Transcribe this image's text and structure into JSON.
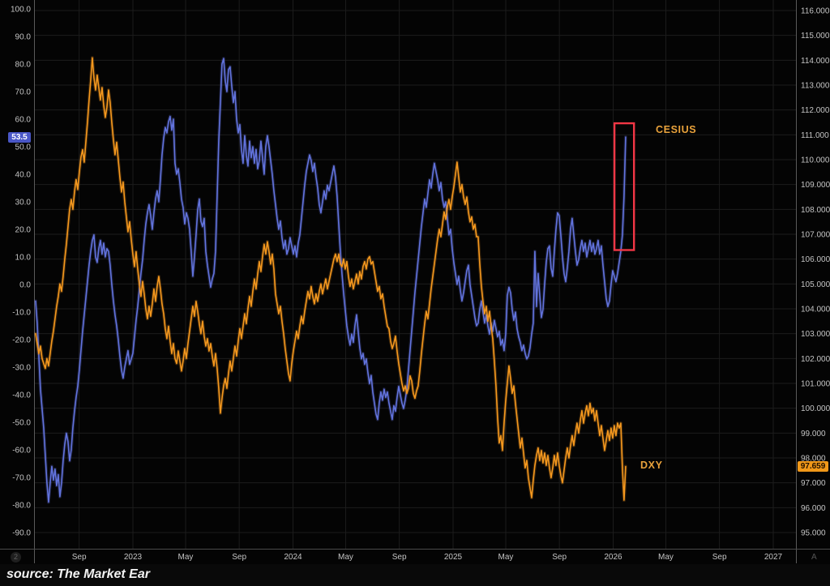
{
  "chart_data": {
    "type": "line",
    "title": "",
    "x_axis": {
      "ticks": [
        {
          "label": "Sep",
          "t": 2022.664
        },
        {
          "label": "2023",
          "t": 2023.0
        },
        {
          "label": "May",
          "t": 2023.329
        },
        {
          "label": "Sep",
          "t": 2023.664
        },
        {
          "label": "2024",
          "t": 2024.0
        },
        {
          "label": "May",
          "t": 2024.329
        },
        {
          "label": "Sep",
          "t": 2024.664
        },
        {
          "label": "2025",
          "t": 2025.0
        },
        {
          "label": "May",
          "t": 2025.329
        },
        {
          "label": "Sep",
          "t": 2025.664
        },
        {
          "label": "2026",
          "t": 2026.0
        },
        {
          "label": "May",
          "t": 2026.329
        },
        {
          "label": "Sep",
          "t": 2026.664
        },
        {
          "label": "2027",
          "t": 2027.0
        }
      ]
    },
    "y_axis_left": {
      "range": [
        -90,
        100
      ],
      "ticks": [
        {
          "label": "100.0",
          "value": 100
        },
        {
          "label": "90.0",
          "value": 90
        },
        {
          "label": "80.0",
          "value": 80
        },
        {
          "label": "70.0",
          "value": 70
        },
        {
          "label": "60.0",
          "value": 60
        },
        {
          "label": "50.0",
          "value": 50
        },
        {
          "label": "40.0",
          "value": 40
        },
        {
          "label": "30.0",
          "value": 30
        },
        {
          "label": "20.0",
          "value": 20
        },
        {
          "label": "10.0",
          "value": 10
        },
        {
          "label": "0.0",
          "value": 0
        },
        {
          "label": "-10.0",
          "value": -10
        },
        {
          "label": "-20.0",
          "value": -20
        },
        {
          "label": "-30.0",
          "value": -30
        },
        {
          "label": "-40.0",
          "value": -40
        },
        {
          "label": "-50.0",
          "value": -50
        },
        {
          "label": "-60.0",
          "value": -60
        },
        {
          "label": "-70.0",
          "value": -70
        },
        {
          "label": "-80.0",
          "value": -80
        },
        {
          "label": "-90.0",
          "value": -90
        }
      ]
    },
    "y_axis_right": {
      "range": [
        95,
        116
      ],
      "ticks": [
        {
          "label": "116.000",
          "value": 116
        },
        {
          "label": "115.000",
          "value": 115
        },
        {
          "label": "114.000",
          "value": 114
        },
        {
          "label": "113.000",
          "value": 113
        },
        {
          "label": "112.000",
          "value": 112
        },
        {
          "label": "111.000",
          "value": 111
        },
        {
          "label": "110.000",
          "value": 110
        },
        {
          "label": "109.000",
          "value": 109
        },
        {
          "label": "108.000",
          "value": 108
        },
        {
          "label": "107.000",
          "value": 107
        },
        {
          "label": "106.000",
          "value": 106
        },
        {
          "label": "105.000",
          "value": 105
        },
        {
          "label": "104.000",
          "value": 104
        },
        {
          "label": "103.000",
          "value": 103
        },
        {
          "label": "102.000",
          "value": 102
        },
        {
          "label": "101.000",
          "value": 101
        },
        {
          "label": "100.000",
          "value": 100
        },
        {
          "label": "99.000",
          "value": 99
        },
        {
          "label": "98.000",
          "value": 98
        },
        {
          "label": "97.000",
          "value": 97
        },
        {
          "label": "96.000",
          "value": 96
        },
        {
          "label": "95.000",
          "value": 95
        }
      ]
    },
    "series": [
      {
        "name": "CESIUS",
        "axis": "left",
        "color": "#6273dd",
        "last_value": 53.5,
        "t_start": 2022.392,
        "t_end": 2026.078,
        "values": [
          -6,
          -14,
          -26,
          -38,
          -45,
          -52,
          -62,
          -72,
          -79,
          -72,
          -66,
          -71,
          -67,
          -73,
          -69,
          -77,
          -72,
          -64,
          -58,
          -54,
          -57,
          -64,
          -60,
          -52,
          -46,
          -41,
          -37,
          -31,
          -24,
          -17,
          -11,
          -5,
          1,
          7,
          12,
          16,
          18,
          10,
          8,
          13,
          16,
          11,
          15,
          10,
          13,
          12,
          7,
          0,
          -6,
          -11,
          -15,
          -20,
          -26,
          -31,
          -34,
          -30,
          -27,
          -24,
          -29,
          -27,
          -25,
          -19,
          -13,
          -8,
          -2,
          4,
          9,
          16,
          22,
          26,
          29,
          25,
          20,
          26,
          31,
          34,
          30,
          38,
          47,
          53,
          57,
          55,
          59,
          61,
          56,
          60,
          44,
          40,
          42,
          37,
          31,
          28,
          22,
          26,
          24,
          20,
          12,
          3,
          10,
          18,
          27,
          31,
          23,
          21,
          24,
          12,
          7,
          3,
          -1,
          2,
          4,
          12,
          32,
          52,
          66,
          80,
          82,
          74,
          70,
          78,
          79,
          72,
          66,
          70,
          60,
          55,
          58,
          49,
          44,
          54,
          47,
          43,
          52,
          46,
          50,
          44,
          49,
          42,
          45,
          52,
          46,
          40,
          50,
          54,
          50,
          45,
          40,
          34,
          29,
          24,
          20,
          23,
          17,
          13,
          16,
          11,
          13,
          17,
          14,
          11,
          14,
          10,
          15,
          18,
          24,
          30,
          36,
          41,
          44,
          47,
          45,
          41,
          44,
          39,
          35,
          29,
          26,
          30,
          34,
          31,
          36,
          34,
          37,
          40,
          43,
          39,
          32,
          22,
          12,
          4,
          -3,
          -9,
          -15,
          -19,
          -22,
          -18,
          -21,
          -15,
          -11,
          -17,
          -23,
          -27,
          -25,
          -29,
          -27,
          -32,
          -36,
          -33,
          -39,
          -43,
          -47,
          -49,
          -43,
          -39,
          -42,
          -38,
          -41,
          -39,
          -43,
          -46,
          -49,
          -44,
          -46,
          -41,
          -37,
          -40,
          -43,
          -45,
          -42,
          -38,
          -31,
          -24,
          -17,
          -10,
          -3,
          3,
          9,
          15,
          21,
          26,
          31,
          28,
          33,
          38,
          35,
          40,
          44,
          41,
          38,
          34,
          37,
          31,
          28,
          30,
          24,
          18,
          20,
          13,
          8,
          4,
          0,
          3,
          -2,
          -6,
          -3,
          1,
          5,
          7,
          0,
          -4,
          -8,
          -12,
          -15,
          -14,
          -9,
          -6,
          -10,
          -14,
          -11,
          -15,
          -18,
          -14,
          -17,
          -13,
          -16,
          -19,
          -17,
          -22,
          -20,
          -24,
          -18,
          -4,
          -1,
          -3,
          -9,
          -13,
          -10,
          -16,
          -19,
          -21,
          -24,
          -22,
          -25,
          -27,
          -26,
          -23,
          -18,
          -14,
          12,
          -8,
          4,
          -4,
          -12,
          -9,
          0,
          8,
          13,
          14,
          6,
          3,
          12,
          20,
          26,
          25,
          18,
          10,
          4,
          1,
          6,
          12,
          20,
          24,
          18,
          12,
          7,
          9,
          13,
          16,
          12,
          15,
          10,
          13,
          16,
          12,
          15,
          11,
          13,
          16,
          11,
          14,
          7,
          1,
          -5,
          -8,
          -6,
          0,
          5,
          3,
          1,
          4,
          8,
          12,
          18,
          32,
          53.5
        ]
      },
      {
        "name": "DXY",
        "axis": "right",
        "color": "#f5981e",
        "last_value": 97.659,
        "t_start": 2022.392,
        "t_end": 2026.078,
        "values": [
          103.0,
          102.6,
          102.2,
          102.5,
          102.0,
          101.8,
          101.6,
          102.0,
          101.7,
          102.2,
          102.7,
          103.1,
          103.6,
          104.1,
          104.5,
          105.0,
          104.7,
          105.3,
          106.0,
          106.6,
          107.3,
          108.0,
          108.4,
          108.0,
          108.7,
          109.2,
          108.8,
          109.5,
          110.1,
          110.4,
          109.9,
          110.7,
          111.5,
          112.4,
          113.2,
          114.1,
          113.3,
          112.8,
          113.4,
          112.9,
          112.4,
          112.9,
          112.2,
          111.7,
          112.1,
          112.8,
          112.3,
          111.5,
          110.8,
          110.2,
          110.7,
          110.0,
          109.3,
          108.7,
          109.1,
          108.3,
          107.7,
          107.1,
          107.5,
          106.8,
          106.2,
          105.7,
          106.3,
          105.6,
          105.0,
          104.5,
          105.1,
          104.6,
          104.0,
          103.6,
          104.1,
          103.7,
          104.2,
          104.8,
          104.3,
          104.9,
          105.3,
          104.8,
          104.2,
          103.8,
          103.2,
          102.8,
          103.3,
          102.7,
          102.2,
          102.6,
          102.0,
          101.8,
          102.3,
          101.9,
          101.5,
          101.9,
          102.4,
          102.0,
          102.6,
          103.1,
          103.6,
          104.1,
          103.7,
          104.3,
          103.9,
          103.4,
          103.0,
          103.5,
          102.9,
          102.5,
          102.8,
          102.3,
          102.6,
          102.1,
          101.7,
          102.2,
          101.6,
          100.8,
          99.8,
          100.4,
          100.9,
          101.2,
          100.8,
          101.4,
          101.9,
          101.5,
          102.0,
          102.5,
          102.1,
          102.7,
          103.2,
          102.8,
          103.3,
          103.8,
          103.4,
          104.0,
          104.5,
          104.1,
          104.7,
          105.2,
          104.8,
          105.4,
          105.9,
          105.5,
          106.1,
          106.6,
          106.2,
          106.7,
          106.3,
          105.8,
          106.2,
          105.6,
          104.6,
          104.2,
          103.8,
          104.1,
          103.5,
          103.0,
          102.4,
          101.9,
          101.4,
          101.1,
          101.8,
          102.3,
          102.7,
          103.1,
          102.8,
          103.3,
          103.7,
          103.4,
          103.9,
          104.3,
          104.7,
          104.4,
          104.9,
          104.5,
          104.2,
          104.6,
          104.3,
          104.7,
          105.0,
          104.6,
          104.9,
          105.2,
          104.8,
          105.1,
          105.4,
          105.7,
          106.0,
          106.2,
          105.9,
          106.2,
          105.8,
          105.7,
          106.0,
          105.6,
          105.9,
          105.3,
          104.9,
          105.2,
          104.8,
          105.1,
          105.4,
          105.0,
          105.5,
          105.2,
          105.7,
          105.9,
          105.6,
          106.0,
          106.1,
          105.8,
          105.9,
          105.5,
          105.1,
          104.7,
          104.9,
          104.4,
          104.6,
          104.1,
          103.7,
          103.3,
          103.2,
          102.7,
          102.4,
          102.6,
          102.9,
          102.3,
          101.8,
          101.4,
          101.0,
          100.7,
          100.9,
          100.6,
          100.8,
          101.3,
          101.1,
          100.6,
          100.4,
          100.7,
          100.9,
          101.5,
          102.2,
          102.8,
          103.4,
          103.9,
          103.6,
          104.2,
          104.8,
          105.3,
          105.8,
          106.3,
          106.8,
          107.2,
          106.9,
          107.4,
          107.9,
          107.6,
          108.1,
          108.4,
          108.0,
          108.5,
          108.9,
          109.4,
          109.9,
          109.3,
          108.7,
          109.0,
          108.5,
          108.2,
          108.5,
          107.9,
          107.5,
          107.7,
          107.2,
          107.4,
          106.9,
          106.9,
          105.8,
          104.9,
          104.3,
          103.8,
          104.1,
          103.5,
          103.9,
          103.3,
          102.8,
          101.9,
          100.9,
          99.6,
          98.6,
          98.9,
          98.3,
          99.4,
          100.3,
          101.0,
          101.7,
          101.2,
          100.6,
          100.9,
          100.2,
          99.6,
          99.0,
          98.4,
          98.8,
          98.2,
          97.6,
          97.9,
          97.2,
          96.8,
          96.4,
          97.1,
          97.7,
          98.1,
          98.4,
          97.9,
          98.3,
          97.8,
          98.2,
          97.7,
          98.1,
          97.6,
          97.2,
          97.6,
          98.1,
          97.7,
          98.2,
          97.7,
          97.3,
          97.0,
          97.5,
          98.0,
          98.4,
          98.0,
          98.5,
          98.9,
          98.5,
          99.0,
          99.4,
          99.0,
          99.5,
          99.9,
          99.4,
          99.8,
          100.1,
          99.7,
          100.2,
          99.8,
          100.0,
          99.5,
          99.9,
          99.4,
          98.9,
          99.3,
          98.8,
          98.3,
          98.7,
          99.1,
          98.7,
          99.2,
          98.8,
          99.3,
          98.9,
          99.4,
          99.2,
          99.4,
          97.6,
          96.3,
          97.659
        ]
      }
    ],
    "annotations": {
      "red_box": {
        "t1": 2026.008,
        "t2": 2026.13,
        "v1": 12.5,
        "v2": 58.5,
        "color": "#f23645"
      }
    },
    "legend_position": "none",
    "grid": true
  },
  "labels": {
    "cesius": "CESIUS",
    "dxy": "DXY",
    "label_color": "#e9a23b"
  },
  "badges": {
    "cesius_last": "53.5",
    "cesius_bg": "#4a57c7",
    "dxy_last": "97.659",
    "dxy_bg": "#f09819"
  },
  "footer": {
    "source_text": "source: The Market Ear",
    "left_glyph": "2",
    "right_glyph": "A"
  }
}
